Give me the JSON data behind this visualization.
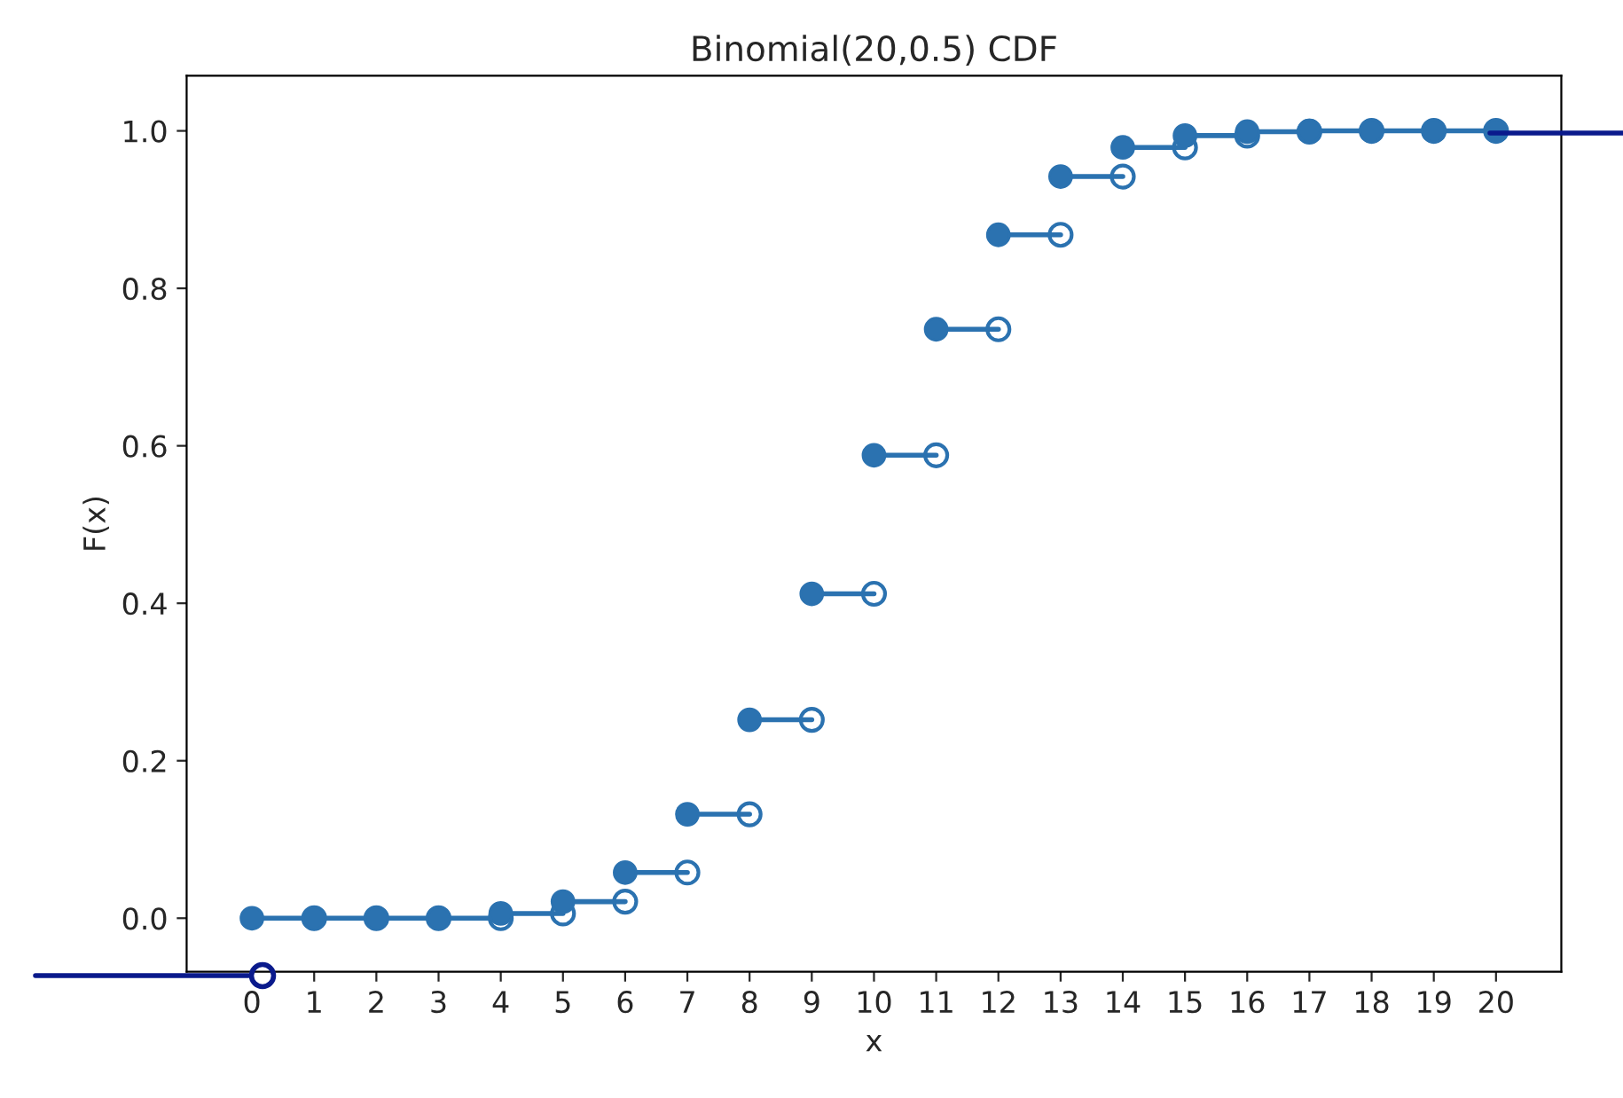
{
  "chart_data": {
    "type": "step",
    "title": "Binomial(20,0.5) CDF",
    "xlabel": "x",
    "ylabel": "F(x)",
    "xlim": [
      -1.05,
      21.05
    ],
    "ylim": [
      -0.068,
      1.07
    ],
    "xticks": [
      0,
      1,
      2,
      3,
      4,
      5,
      6,
      7,
      8,
      9,
      10,
      11,
      12,
      13,
      14,
      15,
      16,
      17,
      18,
      19,
      20
    ],
    "yticks": [
      {
        "value": 0,
        "label": "0.0"
      },
      {
        "value": 0.2,
        "label": "0.2"
      },
      {
        "value": 0.4,
        "label": "0.4"
      },
      {
        "value": 0.6,
        "label": "0.6"
      },
      {
        "value": 0.8,
        "label": "0.8"
      },
      {
        "value": 1,
        "label": "1.0"
      }
    ],
    "grid": false,
    "marker": "circle",
    "series": [
      {
        "color": "#2b72b0",
        "x": [
          0,
          1,
          2,
          3,
          4,
          5,
          6,
          7,
          8,
          9,
          10,
          11,
          12,
          13,
          14,
          15,
          16,
          17,
          18,
          19,
          20
        ],
        "values": [
          0,
          0,
          0,
          0,
          0.006,
          0.021,
          0.058,
          0.132,
          0.252,
          0.412,
          0.588,
          0.748,
          0.868,
          0.942,
          0.979,
          0.994,
          0.999,
          1,
          1,
          1,
          1
        ]
      },
      {
        "type": "scatter",
        "color": "#2b72b0",
        "x": [
          1,
          2,
          3,
          4,
          5,
          6,
          7,
          8,
          9,
          10,
          11,
          12,
          13,
          14,
          15,
          16,
          17,
          18,
          19,
          20
        ],
        "values": [
          0,
          0,
          0,
          0,
          0.006,
          0.021,
          0.058,
          0.132,
          0.252,
          0.412,
          0.588,
          0.748,
          0.868,
          0.942,
          0.979,
          0.994,
          0.999,
          1,
          1,
          1
        ]
      }
    ]
  }
}
